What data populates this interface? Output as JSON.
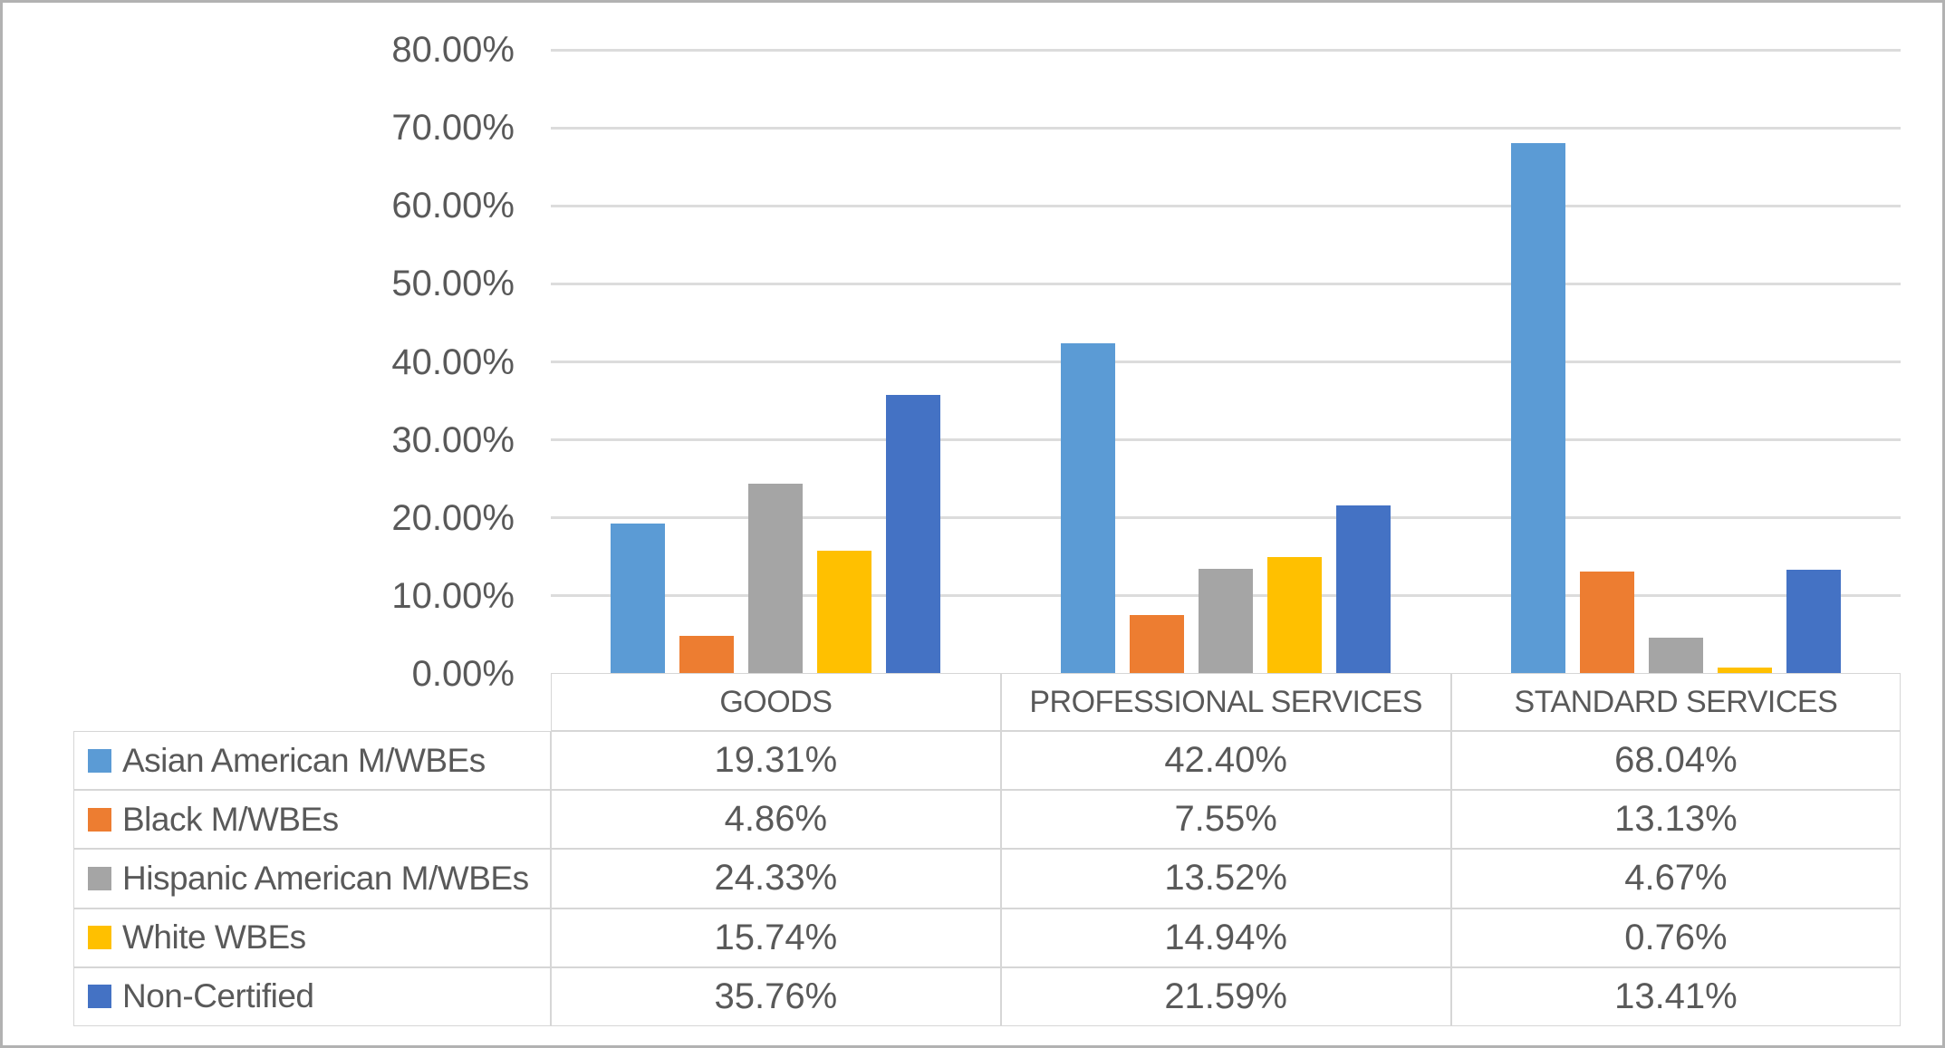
{
  "chart_data": {
    "type": "bar",
    "title": "",
    "categories": [
      "GOODS",
      "PROFESSIONAL SERVICES",
      "STANDARD SERVICES"
    ],
    "series": [
      {
        "name": "Asian American M/WBEs",
        "color": "#5B9BD5",
        "values": [
          19.31,
          42.4,
          68.04
        ],
        "display": [
          "19.31%",
          "42.40%",
          "68.04%"
        ]
      },
      {
        "name": "Black M/WBEs",
        "color": "#ED7D31",
        "values": [
          4.86,
          7.55,
          13.13
        ],
        "display": [
          "4.86%",
          "7.55%",
          "13.13%"
        ]
      },
      {
        "name": "Hispanic American M/WBEs",
        "color": "#A5A5A5",
        "values": [
          24.33,
          13.52,
          4.67
        ],
        "display": [
          "24.33%",
          "13.52%",
          "4.67%"
        ]
      },
      {
        "name": "White WBEs",
        "color": "#FFC000",
        "values": [
          15.74,
          14.94,
          0.76
        ],
        "display": [
          "15.74%",
          "14.94%",
          "0.76%"
        ]
      },
      {
        "name": "Non-Certified",
        "color": "#4472C4",
        "values": [
          35.76,
          21.59,
          13.41
        ],
        "display": [
          "35.76%",
          "21.59%",
          "13.41%"
        ]
      }
    ],
    "y_axis": {
      "min": 0,
      "max": 80,
      "step": 10,
      "tick_labels": [
        "0.00%",
        "10.00%",
        "20.00%",
        "30.00%",
        "40.00%",
        "50.00%",
        "60.00%",
        "70.00%",
        "80.00%"
      ]
    },
    "grid": true,
    "legend_position": "data-table",
    "colors": {
      "text": "#595959",
      "gridline": "#dcdcdc",
      "table_border": "#d6d6d6",
      "frame_border": "#b2b2b2"
    }
  }
}
